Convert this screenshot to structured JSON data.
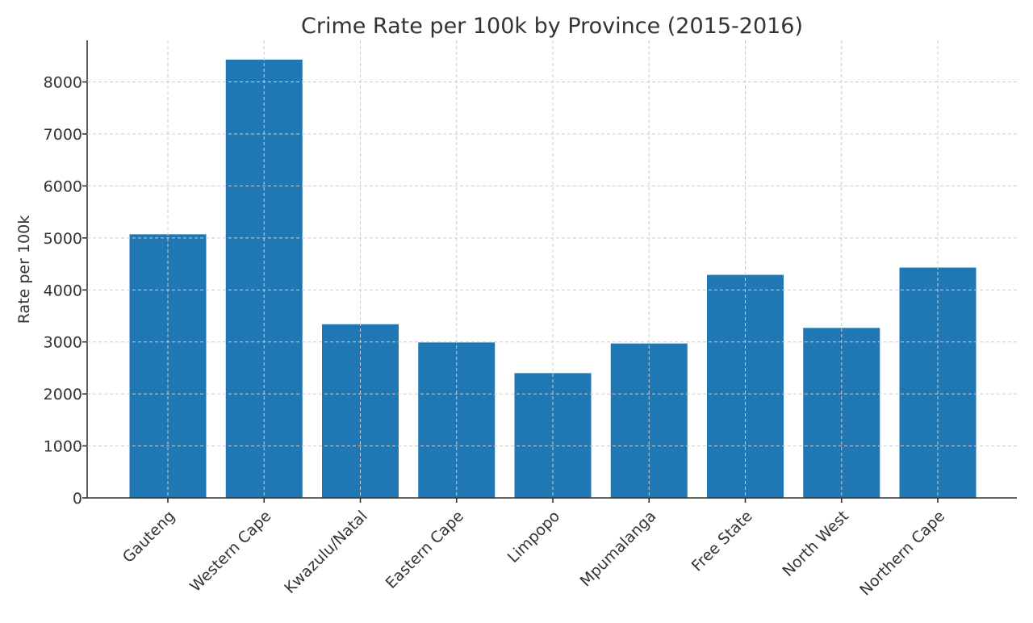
{
  "chart_data": {
    "type": "bar",
    "title": "Crime Rate per 100k by Province (2015-2016)",
    "xlabel": "",
    "ylabel": "Rate per 100k",
    "categories": [
      "Gauteng",
      "Western Cape",
      "Kwazulu/Natal",
      "Eastern Cape",
      "Limpopo",
      "Mpumalanga",
      "Free State",
      "North West",
      "Northern Cape"
    ],
    "values": [
      5070,
      8430,
      3340,
      2990,
      2400,
      2970,
      4290,
      3270,
      4430
    ],
    "ylim": [
      0,
      8800
    ],
    "yticks": [
      0,
      1000,
      2000,
      3000,
      4000,
      5000,
      6000,
      7000,
      8000
    ],
    "grid": true,
    "bar_color": "#1f77b4"
  }
}
